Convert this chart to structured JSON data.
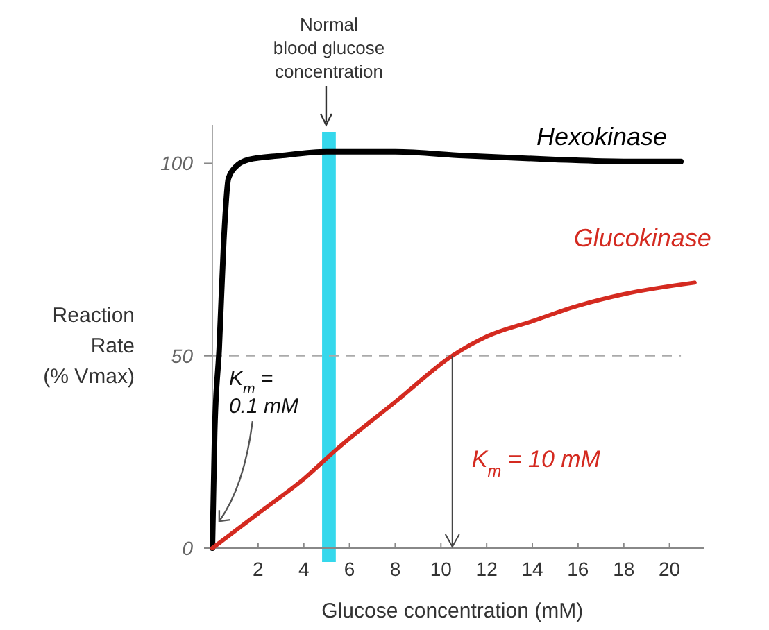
{
  "chart_data": {
    "type": "line",
    "xlabel": "Glucose concentration (mM)",
    "ylabel": "Reaction Rate (% Vmax)",
    "xlim": [
      0,
      21.5
    ],
    "ylim": [
      0,
      110
    ],
    "xticks": [
      2,
      4,
      6,
      8,
      10,
      12,
      14,
      16,
      18,
      20
    ],
    "yticks": [
      0,
      50,
      100
    ],
    "series": [
      {
        "name": "Hexokinase",
        "color": "#000000",
        "x": [
          0,
          0.1,
          0.3,
          0.5,
          0.7,
          1,
          1.6,
          3,
          5,
          8,
          11,
          15,
          18,
          20.5
        ],
        "values": [
          0,
          30,
          52,
          80,
          96,
          99,
          101,
          102,
          103,
          103,
          102,
          101,
          100.5,
          100.5
        ]
      },
      {
        "name": "Glucokinase",
        "color": "#d42a20",
        "x": [
          0,
          2,
          4,
          5.5,
          8,
          10.5,
          12,
          14,
          16,
          18,
          21.1
        ],
        "values": [
          0,
          9,
          18,
          26,
          38,
          50,
          55,
          59,
          63,
          66,
          69
        ]
      }
    ],
    "bands": [
      {
        "axis": "x",
        "from": 4.8,
        "to": 5.4,
        "label": "Normal blood glucose concentration",
        "color": "#35d8ec"
      }
    ],
    "ref_lines": [
      {
        "axis": "y",
        "value": 50,
        "line_style": "dashed",
        "color": "#aaaaaa"
      }
    ],
    "annotations": [
      {
        "text": "K$_{m}$ = 0.1 mM",
        "x": 0.3,
        "y": 7
      },
      "K$_{m}$ = 10 mM"
    ],
    "legend": false,
    "grid": false,
    "line_style": "solid",
    "marker": "none"
  }
}
